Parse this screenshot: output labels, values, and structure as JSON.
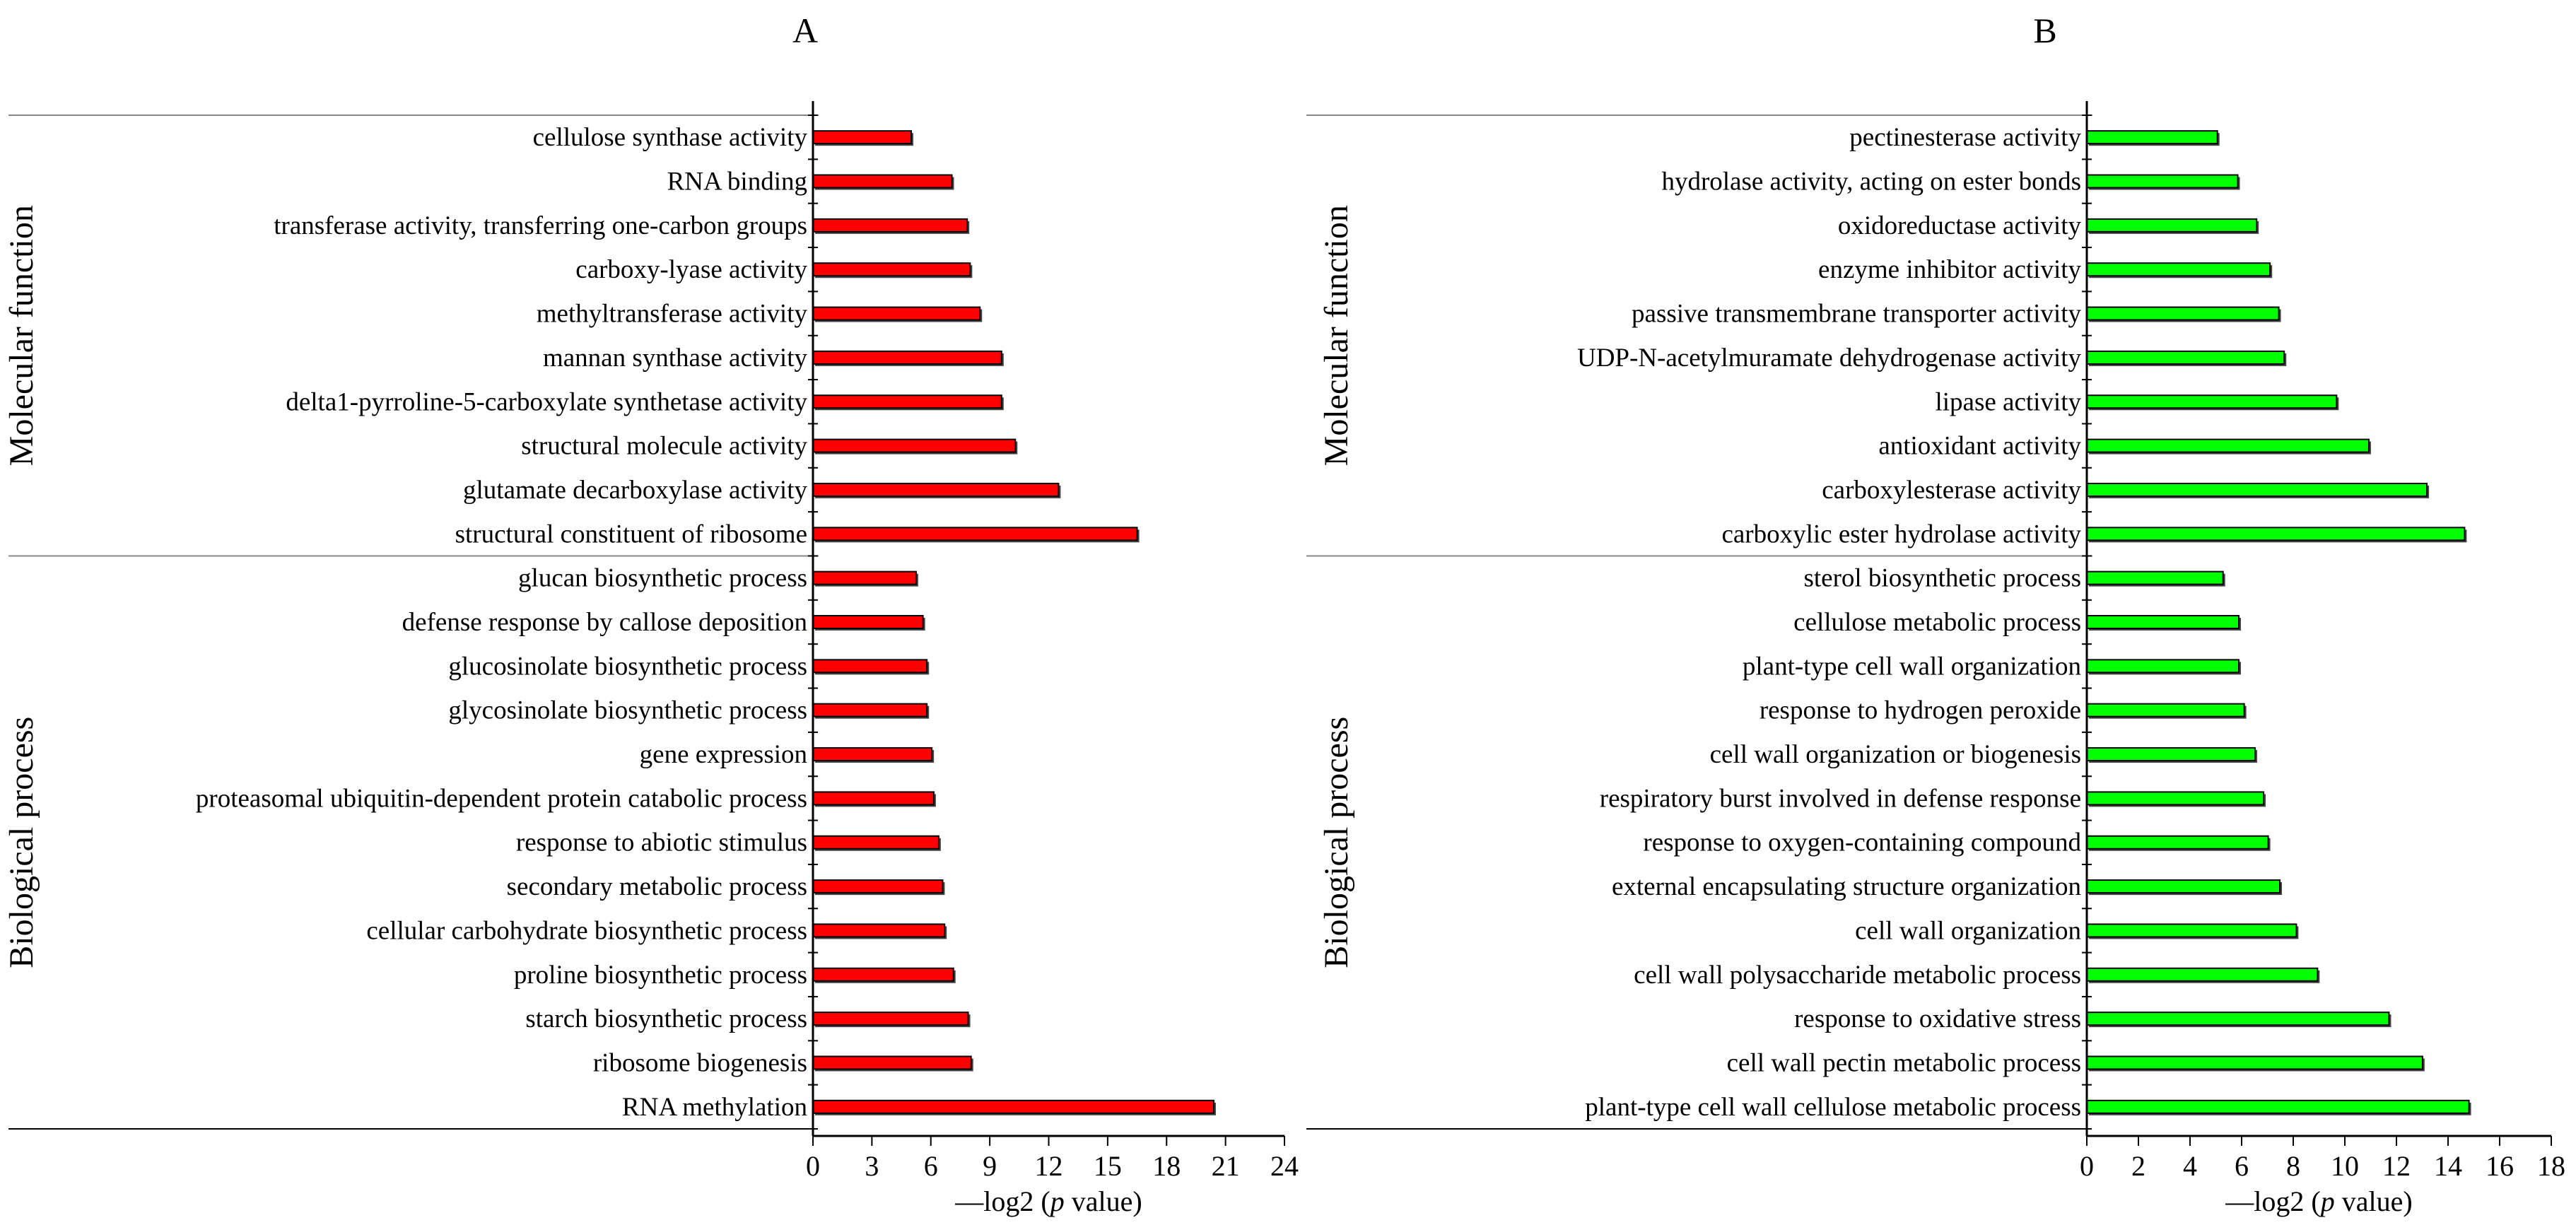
{
  "chart_data": [
    {
      "type": "bar",
      "orientation": "horizontal",
      "panel_label": "A",
      "xlabel_prefix": "—log2 (",
      "xlabel_italic": "p",
      "xlabel_suffix": " value)",
      "xlim": [
        0,
        24
      ],
      "xticks": [
        "0",
        "3",
        "6",
        "9",
        "12",
        "15",
        "18",
        "21",
        "24"
      ],
      "bar_color": "#ff0000",
      "groups": [
        {
          "name": "Molecular function",
          "categories": [
            "cellulose synthase activity",
            "RNA binding",
            "transferase activity, transferring one-carbon groups",
            "carboxy-lyase activity",
            "methyltransferase activity",
            "mannan synthase activity",
            "delta1-pyrroline-5-carboxylate synthetase activity",
            "structural molecule activity",
            "glutamate decarboxylase activity",
            "structural constituent of ribosome"
          ],
          "values": [
            5.0,
            7.07,
            7.85,
            8.0,
            8.5,
            9.6,
            9.6,
            10.3,
            12.5,
            16.5
          ]
        },
        {
          "name": "Biological process",
          "categories": [
            "glucan biosynthetic process",
            "defense response by callose deposition",
            "glucosinolate biosynthetic process",
            "glycosinolate biosynthetic process",
            "gene expression",
            "proteasomal ubiquitin-dependent protein catabolic process",
            "response to abiotic stimulus",
            "secondary metabolic process",
            "cellular carbohydrate biosynthetic process",
            "proline biosynthetic process",
            "starch biosynthetic process",
            "ribosome biogenesis",
            "RNA methylation"
          ],
          "values": [
            5.25,
            5.6,
            5.8,
            5.8,
            6.05,
            6.15,
            6.4,
            6.6,
            6.7,
            7.15,
            7.9,
            8.05,
            20.4
          ]
        }
      ]
    },
    {
      "type": "bar",
      "orientation": "horizontal",
      "panel_label": "B",
      "xlabel_prefix": "—log2 (",
      "xlabel_italic": "p",
      "xlabel_suffix": " value)",
      "xlim": [
        0,
        18
      ],
      "xticks": [
        "0",
        "2",
        "4",
        "6",
        "8",
        "10",
        "12",
        "14",
        "16",
        "18"
      ],
      "bar_color": "#00ff00",
      "groups": [
        {
          "name": "Molecular function",
          "categories": [
            "pectinesterase activity",
            "hydrolase activity, acting on ester bonds",
            "oxidoreductase activity",
            "enzyme inhibitor activity",
            "passive transmembrane transporter activity",
            "UDP-N-acetylmuramate dehydrogenase activity",
            "lipase activity",
            "antioxidant activity",
            "carboxylesterase activity",
            "carboxylic ester hydrolase activity"
          ],
          "values": [
            5.06,
            5.85,
            6.58,
            7.1,
            7.44,
            7.65,
            9.68,
            10.93,
            13.18,
            14.64
          ]
        },
        {
          "name": "Biological process",
          "categories": [
            "sterol biosynthetic process",
            "cellulose metabolic process",
            "plant-type cell wall organization",
            "response to hydrogen peroxide",
            "cell wall organization or biogenesis",
            "respiratory burst involved in defense response",
            "response to oxygen-containing compound",
            "external encapsulating structure organization",
            "cell wall organization",
            "cell wall polysaccharide metabolic process",
            "response to oxidative stress",
            "cell wall pectin metabolic process",
            "plant-type cell wall cellulose metabolic process"
          ],
          "values": [
            5.28,
            5.89,
            5.89,
            6.1,
            6.52,
            6.85,
            7.03,
            7.48,
            8.12,
            8.94,
            11.71,
            13.01,
            14.81
          ]
        }
      ]
    }
  ]
}
